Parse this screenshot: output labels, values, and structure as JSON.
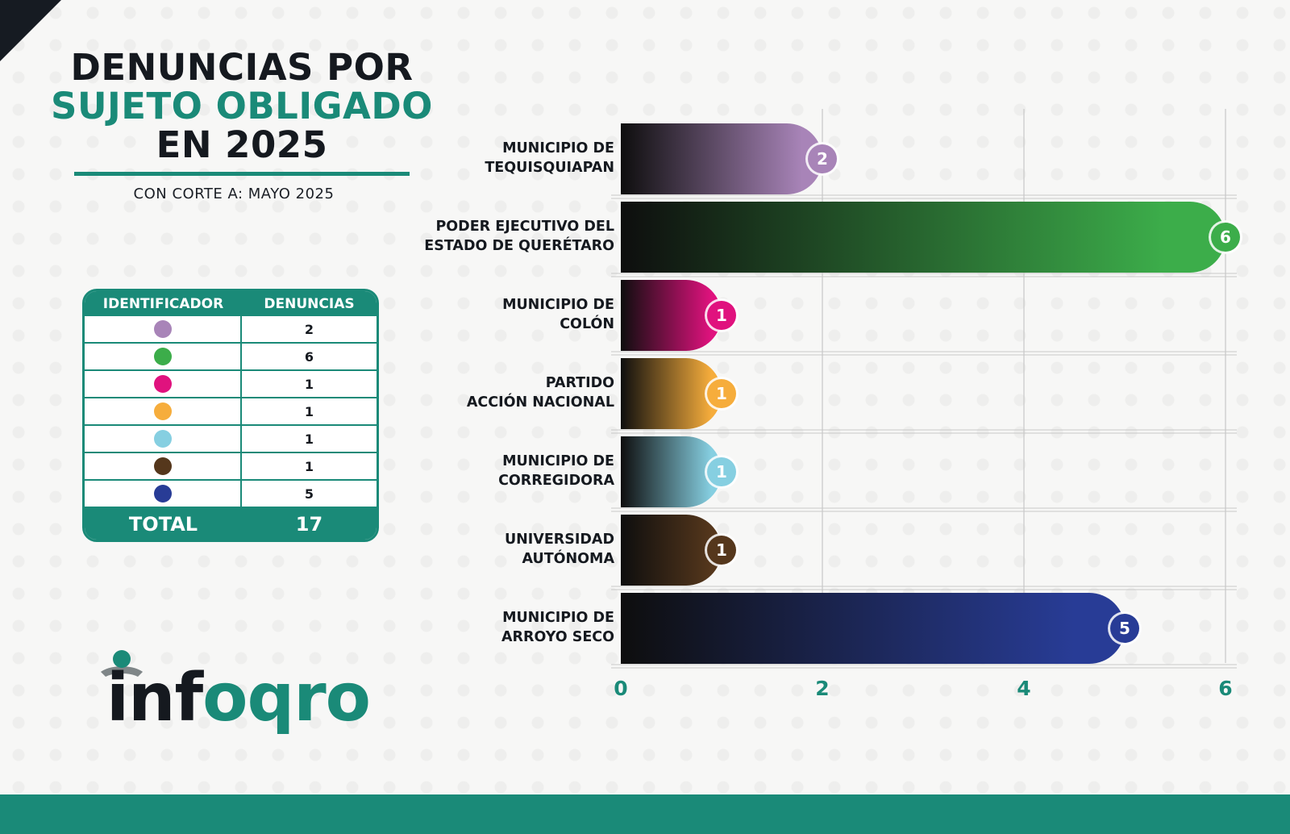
{
  "title": {
    "line1": "DENUNCIAS POR",
    "line2": "SUJETO OBLIGADO",
    "line3": "EN 2025",
    "subtitle": "CON CORTE A: MAYO 2025"
  },
  "table": {
    "header_id": "IDENTIFICADOR",
    "header_count": "DENUNCIAS",
    "rows": [
      {
        "color": "#a884b8",
        "count": "2"
      },
      {
        "color": "#3cad4a",
        "count": "6"
      },
      {
        "color": "#e0127e",
        "count": "1"
      },
      {
        "color": "#f6ad3c",
        "count": "1"
      },
      {
        "color": "#86cfe1",
        "count": "1"
      },
      {
        "color": "#55371c",
        "count": "1"
      },
      {
        "color": "#283c96",
        "count": "5"
      }
    ],
    "total_label": "TOTAL",
    "total_value": "17"
  },
  "logo": {
    "dark": "inf",
    "teal": "oqro"
  },
  "colors": {
    "brand_teal": "#1a8a78",
    "dark": "#15191f"
  },
  "chart_data": {
    "type": "bar",
    "orientation": "horizontal",
    "categories": [
      [
        "MUNICIPIO DE",
        "TEQUISQUIAPAN"
      ],
      [
        "PODER EJECUTIVO DEL",
        "ESTADO DE QUERÉTARO"
      ],
      [
        "MUNICIPIO DE",
        "COLÓN"
      ],
      [
        "PARTIDO",
        "ACCIÓN NACIONAL"
      ],
      [
        "MUNICIPIO DE",
        "CORREGIDORA"
      ],
      [
        "UNIVERSIDAD",
        "AUTÓNOMA"
      ],
      [
        "MUNICIPIO DE",
        "ARROYO SECO"
      ]
    ],
    "values": [
      2,
      6,
      1,
      1,
      1,
      1,
      5
    ],
    "colors": [
      "#a884b8",
      "#3cad4a",
      "#e0127e",
      "#f6ad3c",
      "#86cfe1",
      "#55371c",
      "#283c96"
    ],
    "xlim": [
      0,
      6
    ],
    "xticks": [
      "0",
      "2",
      "4",
      "6"
    ],
    "grid": true
  }
}
